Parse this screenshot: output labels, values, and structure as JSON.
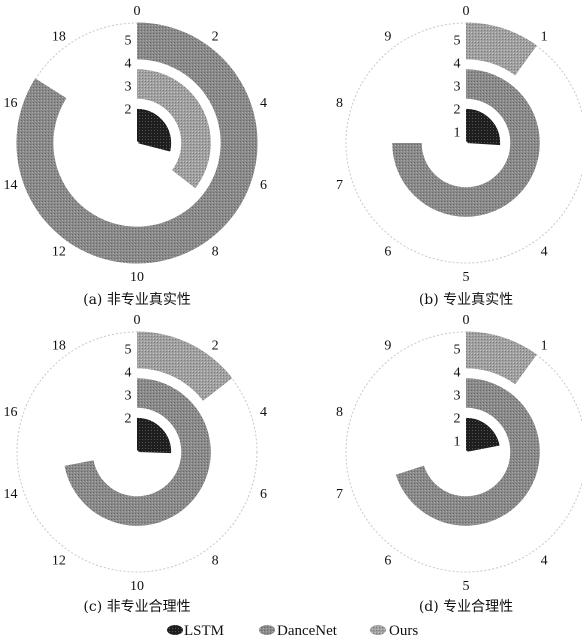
{
  "chart_data": [
    {
      "type": "radial-bar",
      "caption": "(a) 非专业真实性",
      "theta_ticks": [
        "0",
        "2",
        "4",
        "6",
        "8",
        "10",
        "12",
        "14",
        "16",
        "18"
      ],
      "theta_max": 20,
      "r_ticks": [
        "2",
        "3",
        "4",
        "5"
      ],
      "series": [
        {
          "name": "LSTM",
          "value": 5.8
        },
        {
          "name": "DanceNet",
          "value": 16.8
        },
        {
          "name": "Ours",
          "value": 7.1
        }
      ]
    },
    {
      "type": "radial-bar",
      "caption": "(b) 专业真实性",
      "theta_ticks": [
        "0",
        "1",
        "2",
        "3",
        "4",
        "5",
        "6",
        "7",
        "8",
        "9"
      ],
      "theta_max": 10,
      "r_ticks": [
        "1",
        "2",
        "3",
        "4",
        "5"
      ],
      "series": [
        {
          "name": "LSTM",
          "value": 2.6
        },
        {
          "name": "DanceNet",
          "value": 7.5
        },
        {
          "name": "Ours",
          "value": 1.0
        }
      ]
    },
    {
      "type": "radial-bar",
      "caption": "(c) 非专业合理性",
      "theta_ticks": [
        "0",
        "2",
        "4",
        "6",
        "8",
        "10",
        "12",
        "14",
        "16",
        "18"
      ],
      "theta_max": 20,
      "r_ticks": [
        "2",
        "3",
        "4",
        "5"
      ],
      "series": [
        {
          "name": "LSTM",
          "value": 5.1
        },
        {
          "name": "DanceNet",
          "value": 14.4
        },
        {
          "name": "Ours",
          "value": 2.9
        }
      ]
    },
    {
      "type": "radial-bar",
      "caption": "(d) 专业合理性",
      "theta_ticks": [
        "0",
        "1",
        "2",
        "3",
        "4",
        "5",
        "6",
        "7",
        "8",
        "9"
      ],
      "theta_max": 10,
      "r_ticks": [
        "1",
        "2",
        "3",
        "4",
        "5"
      ],
      "series": [
        {
          "name": "LSTM",
          "value": 2.2
        },
        {
          "name": "DanceNet",
          "value": 7.0
        },
        {
          "name": "Ours",
          "value": 1.0
        }
      ]
    }
  ],
  "legend": {
    "placement": "bottom",
    "items": [
      {
        "name": "LSTM",
        "color": "#1e1e1e",
        "icon": "dotted-dark-swatch"
      },
      {
        "name": "DanceNet",
        "color": "#8a8a8a",
        "icon": "hatched-gray-swatch"
      },
      {
        "name": "Ours",
        "color": "#9c9c9c",
        "icon": "hatched-light-swatch"
      }
    ]
  },
  "colors": {
    "lstm": "#1e1e1e",
    "dancenet": "#8a8a8a",
    "ours": "#9c9c9c",
    "grid": "#c8c8c8"
  }
}
